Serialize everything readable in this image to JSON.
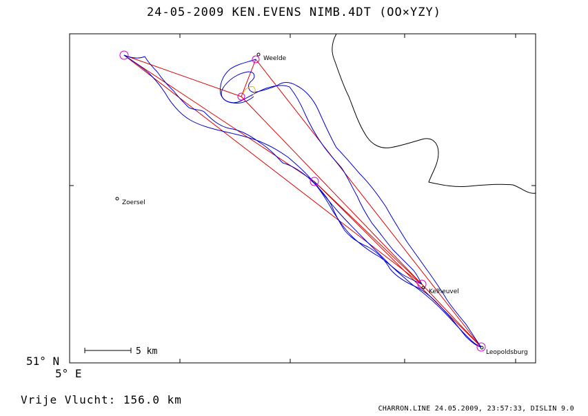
{
  "header": {
    "title": "24-05-2009   KEN.EVENS   NIMB.4DT (OO×YZY)"
  },
  "axes": {
    "lat_label": "51° N",
    "lon_label": "5° E"
  },
  "map": {
    "places": [
      {
        "name": "Weelde"
      },
      {
        "name": "Zoersel"
      },
      {
        "name": "Kelheuvel"
      },
      {
        "name": "Leopoldsburg"
      }
    ],
    "scale_label": "5 km",
    "colors": {
      "track": "#0000cc",
      "task_line": "#dd0000",
      "turnpoint": "#cc00cc",
      "border": "#000000",
      "highlight": "#e8b000"
    }
  },
  "summary": {
    "distance_text": "Vrije Vlucht:  156.0 km"
  },
  "footer": {
    "credit": "CHARRON.LINE 24.05.2009, 23:57:33, DISLIN 9.0"
  }
}
